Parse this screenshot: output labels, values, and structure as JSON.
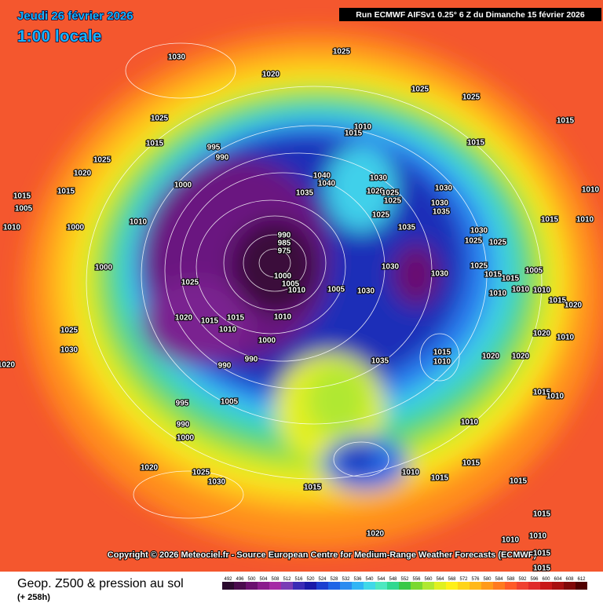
{
  "header": {
    "date": "Jeudi 26 février 2026",
    "time": "1:00 locale",
    "run": "Run ECMWF AIFSv1 0.25° 6 Z du Dimanche 15 février 2026"
  },
  "copyright": "Copyright © 2026 Meteociel.fr - Source European Centre for Medium-Range Weather Forecasts (ECMWF)",
  "footer": {
    "title": "Geop. Z500 & pression au sol",
    "subtitle": "(+ 258h)"
  },
  "colorbar": {
    "ticks": [
      492,
      496,
      500,
      504,
      508,
      512,
      516,
      520,
      524,
      528,
      532,
      536,
      540,
      544,
      548,
      552,
      556,
      560,
      564,
      568,
      572,
      576,
      580,
      584,
      588,
      592,
      596,
      600,
      604,
      608,
      612
    ],
    "colors": [
      "#2b0a2e",
      "#4a0b4d",
      "#6a0f6e",
      "#8a1b8c",
      "#a52aa5",
      "#7a3cb5",
      "#3b2bb5",
      "#1a1aa8",
      "#1c3fd0",
      "#1f64e6",
      "#2a8bf0",
      "#30b5f5",
      "#40d8e8",
      "#4de8c0",
      "#30d890",
      "#38c848",
      "#7ad830",
      "#b0e830",
      "#e0f020",
      "#fff018",
      "#ffd418",
      "#ffb81a",
      "#ff9a1a",
      "#ff7a1f",
      "#ff5a28",
      "#f04030",
      "#e02a2a",
      "#c81818",
      "#a81010",
      "#800808",
      "#500000"
    ]
  },
  "isobars": [
    1030,
    1025,
    1020,
    1025,
    1025,
    1015,
    1025,
    1010,
    1015,
    1015,
    1015,
    995,
    990,
    1025,
    1020,
    1040,
    1040,
    1000,
    1030,
    1030,
    1015,
    1015,
    1035,
    1010,
    1010,
    1020,
    1025,
    1025,
    1030,
    1035,
    1005,
    1025,
    1015,
    1010,
    1000,
    1035,
    1010,
    1030,
    1025,
    1025,
    990,
    985,
    975,
    1030,
    1030,
    1025,
    1000,
    1005,
    1015,
    1015,
    1025,
    1000,
    1005,
    1010,
    1005,
    1030,
    1010,
    1010,
    1010,
    1015,
    1020,
    1020,
    1015,
    1015,
    1010,
    1010,
    1025,
    1020,
    1010,
    1000,
    1030,
    1015,
    1010,
    1020,
    1020,
    1035,
    990,
    990,
    1020,
    1015,
    1010,
    995,
    1005,
    1010,
    990,
    1000,
    1015,
    1010,
    1015,
    1020,
    1025,
    1030,
    1015,
    1015,
    1015,
    1020,
    1010,
    1010,
    1015,
    1015
  ]
}
